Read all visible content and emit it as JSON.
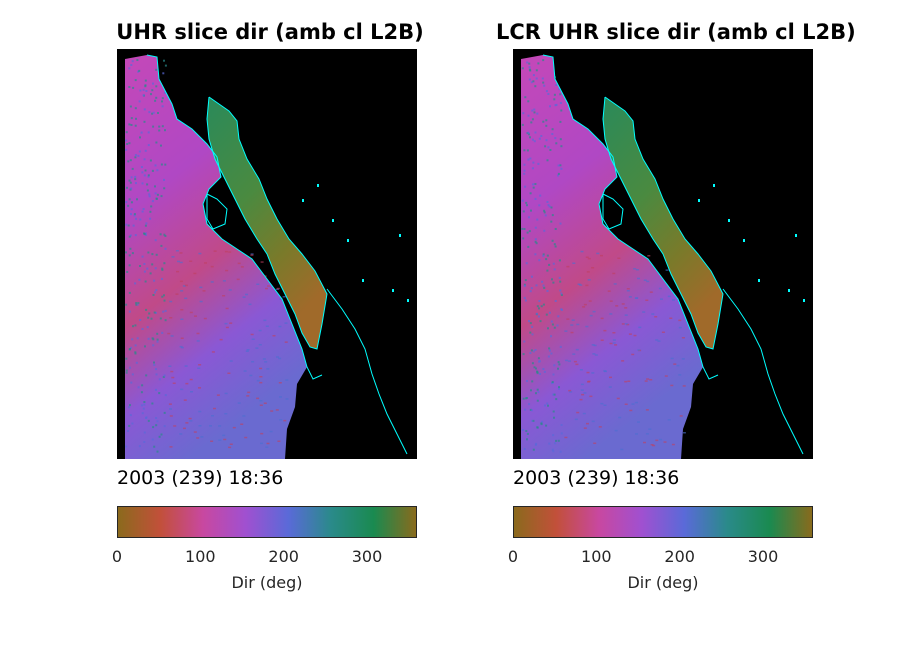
{
  "chart_data": [
    {
      "type": "heatmap",
      "title": "UHR slice dir (amb cl L2B)",
      "annotation": "2003 (239) 18:36",
      "colorbar": {
        "label": "Dir (deg)",
        "ticks": [
          0,
          100,
          200,
          300
        ],
        "range": [
          0,
          360
        ],
        "placement": "bottom"
      }
    },
    {
      "type": "heatmap",
      "title": "LCR UHR slice dir (amb cl L2B)",
      "annotation": "2003 (239) 18:36",
      "colorbar": {
        "label": "Dir (deg)",
        "ticks": [
          0,
          100,
          200,
          300
        ],
        "range": [
          0,
          360
        ],
        "placement": "bottom"
      }
    }
  ],
  "colors": {
    "background": "#000000",
    "coastline": "#00ffff",
    "colormap": [
      "#8a6a1c",
      "#c2503a",
      "#c848a0",
      "#a050d0",
      "#5a6ad8",
      "#2a8a8a",
      "#1a8a50",
      "#8a6a1c"
    ]
  }
}
